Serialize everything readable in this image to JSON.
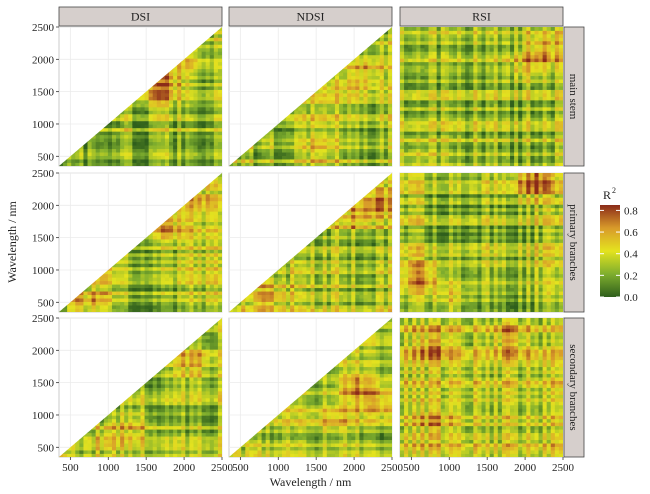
{
  "chart_data": {
    "type": "heatmap",
    "layout": "facet_grid",
    "columns": [
      "DSI",
      "NDSI",
      "RSI"
    ],
    "rows": [
      "main stem",
      "primary branches",
      "secondary branches"
    ],
    "xlabel": "Wavelength / nm",
    "ylabel": "Wavelength / nm",
    "x_range": [
      350,
      2500
    ],
    "y_range": [
      350,
      2500
    ],
    "x_ticks": [
      500,
      1000,
      1500,
      2000,
      2500
    ],
    "x_tick_labels": [
      "500",
      "1000",
      "1500",
      "2000",
      "2500"
    ],
    "y_ticks": [
      500,
      1000,
      1500,
      2000,
      2500
    ],
    "y_tick_labels": [
      "500",
      "1000",
      "1500",
      "2000",
      "2500"
    ],
    "grid": true,
    "legend": {
      "title": "R",
      "title_superscript": "2",
      "position": "right",
      "ticks": [
        0.0,
        0.2,
        0.4,
        0.6,
        0.8
      ],
      "tick_labels": [
        "0.0",
        "0.2",
        "0.4",
        "0.6",
        "0.8"
      ],
      "range": [
        0,
        0.85
      ],
      "colors": [
        "#2f5f1c",
        "#7fae2e",
        "#e4e31f",
        "#d89a2a",
        "#8b2b19"
      ]
    },
    "panels": [
      {
        "column": "DSI",
        "row": "main stem",
        "triangular": true,
        "base_r2": 0.28,
        "hotspots": [
          {
            "x": 1750,
            "y": 1700,
            "r2": 0.62
          },
          {
            "x": 2100,
            "y": 2050,
            "r2": 0.55
          },
          {
            "x": 1600,
            "y": 1450,
            "r2": 0.5
          }
        ]
      },
      {
        "column": "NDSI",
        "row": "main stem",
        "triangular": true,
        "base_r2": 0.3,
        "hotspots": [
          {
            "x": 2250,
            "y": 1850,
            "r2": 0.6
          },
          {
            "x": 2000,
            "y": 1700,
            "r2": 0.52
          },
          {
            "x": 1500,
            "y": 550,
            "r2": 0.45
          }
        ]
      },
      {
        "column": "RSI",
        "row": "main stem",
        "triangular": false,
        "base_r2": 0.28,
        "hotspots": [
          {
            "x": 2250,
            "y": 2150,
            "r2": 0.65
          },
          {
            "x": 2000,
            "y": 1850,
            "r2": 0.5
          },
          {
            "x": 600,
            "y": 500,
            "r2": 0.4
          }
        ]
      },
      {
        "column": "DSI",
        "row": "primary branches",
        "triangular": true,
        "base_r2": 0.3,
        "hotspots": [
          {
            "x": 1750,
            "y": 1700,
            "r2": 0.68
          },
          {
            "x": 700,
            "y": 500,
            "r2": 0.58
          },
          {
            "x": 2200,
            "y": 2050,
            "r2": 0.5
          }
        ]
      },
      {
        "column": "NDSI",
        "row": "primary branches",
        "triangular": true,
        "base_r2": 0.32,
        "hotspots": [
          {
            "x": 900,
            "y": 600,
            "r2": 0.62
          },
          {
            "x": 2300,
            "y": 2100,
            "r2": 0.7
          },
          {
            "x": 2050,
            "y": 1800,
            "r2": 0.6
          }
        ]
      },
      {
        "column": "RSI",
        "row": "primary branches",
        "triangular": false,
        "base_r2": 0.3,
        "hotspots": [
          {
            "x": 650,
            "y": 900,
            "r2": 0.65
          },
          {
            "x": 2100,
            "y": 2350,
            "r2": 0.72
          },
          {
            "x": 1000,
            "y": 550,
            "r2": 0.55
          }
        ]
      },
      {
        "column": "DSI",
        "row": "secondary branches",
        "triangular": true,
        "base_r2": 0.28,
        "hotspots": [
          {
            "x": 1350,
            "y": 850,
            "r2": 0.58
          },
          {
            "x": 2100,
            "y": 1800,
            "r2": 0.55
          },
          {
            "x": 1000,
            "y": 700,
            "r2": 0.45
          }
        ]
      },
      {
        "column": "NDSI",
        "row": "secondary branches",
        "triangular": true,
        "base_r2": 0.35,
        "hotspots": [
          {
            "x": 2050,
            "y": 1400,
            "r2": 0.68
          },
          {
            "x": 2400,
            "y": 1200,
            "r2": 0.62
          },
          {
            "x": 1700,
            "y": 900,
            "r2": 0.58
          }
        ]
      },
      {
        "column": "RSI",
        "row": "secondary branches",
        "triangular": false,
        "base_r2": 0.4,
        "hotspots": [
          {
            "x": 800,
            "y": 2100,
            "r2": 0.66
          },
          {
            "x": 1800,
            "y": 2200,
            "r2": 0.64
          },
          {
            "x": 800,
            "y": 900,
            "r2": 0.6
          }
        ]
      }
    ]
  }
}
